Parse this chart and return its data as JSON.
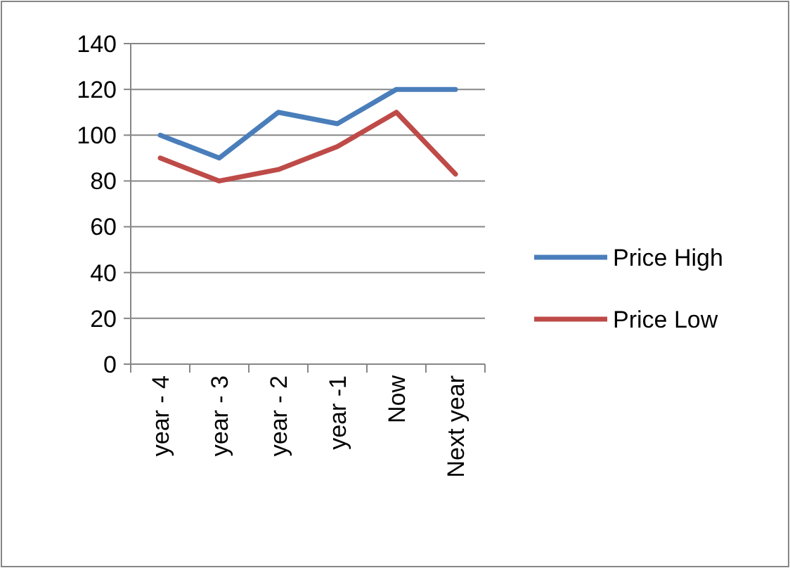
{
  "chart_data": {
    "type": "line",
    "categories": [
      "year - 4",
      "year - 3",
      "year - 2",
      "year -1",
      "Now",
      "Next year"
    ],
    "series": [
      {
        "name": "Price High",
        "color": "#4a7ebb",
        "values": [
          100,
          90,
          110,
          105,
          120,
          120
        ]
      },
      {
        "name": "Price Low",
        "color": "#be4b48",
        "values": [
          90,
          80,
          85,
          95,
          110,
          83
        ]
      }
    ],
    "ylim": [
      0,
      140
    ],
    "yticks": [
      0,
      20,
      40,
      60,
      80,
      100,
      120,
      140
    ],
    "grid": "y",
    "legend": "right",
    "marker": "none",
    "line_style": "solid"
  }
}
